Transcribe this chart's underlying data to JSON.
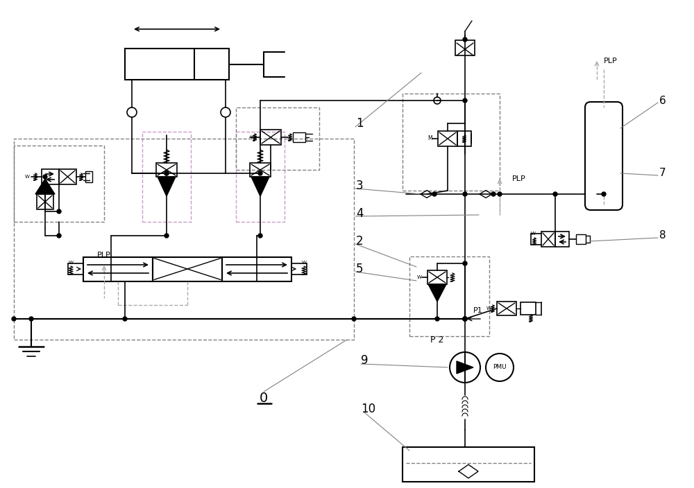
{
  "bg_color": "#ffffff",
  "line_color": "#000000",
  "dashed_color": "#aaaaaa",
  "purple_color": "#cc99cc",
  "label_0": "0",
  "label_1": "1",
  "label_2": "2",
  "label_3": "3",
  "label_4": "4",
  "label_5": "5",
  "label_6": "6",
  "label_7": "7",
  "label_8": "8",
  "label_9": "9",
  "label_10": "10",
  "label_PLP": "PLP",
  "label_P1": "P1",
  "label_P2": "P 2",
  "label_PMU": "PMU",
  "figsize": [
    10.0,
    7.04
  ],
  "dpi": 100
}
